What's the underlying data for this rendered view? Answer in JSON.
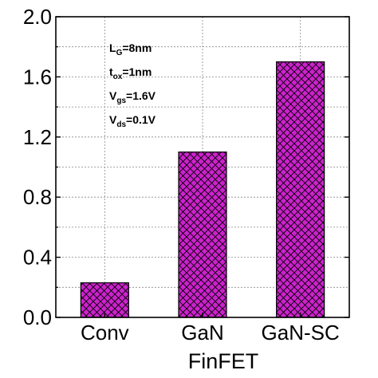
{
  "chart_data": {
    "type": "bar",
    "categories": [
      "Conv",
      "GaN",
      "GaN-SC"
    ],
    "values": [
      0.23,
      1.1,
      1.7
    ],
    "xlabel": "FinFET",
    "ylabel": "",
    "ylim": [
      0,
      2.0
    ],
    "yticks": [
      "0.0",
      "0.4",
      "0.8",
      "1.2",
      "1.6",
      "2.0"
    ],
    "grid": true,
    "bar_color": "#cc22cc",
    "bar_pattern": "crosshatch",
    "annotations": [
      {
        "main": "L",
        "sub": "G",
        "rest": "=8nm"
      },
      {
        "main": "t",
        "sub": "ox",
        "rest": "=1nm"
      },
      {
        "main": "V",
        "sub": "gs",
        "rest": "=1.6V"
      },
      {
        "main": "V",
        "sub": "ds",
        "rest": "=0.1V"
      }
    ]
  }
}
